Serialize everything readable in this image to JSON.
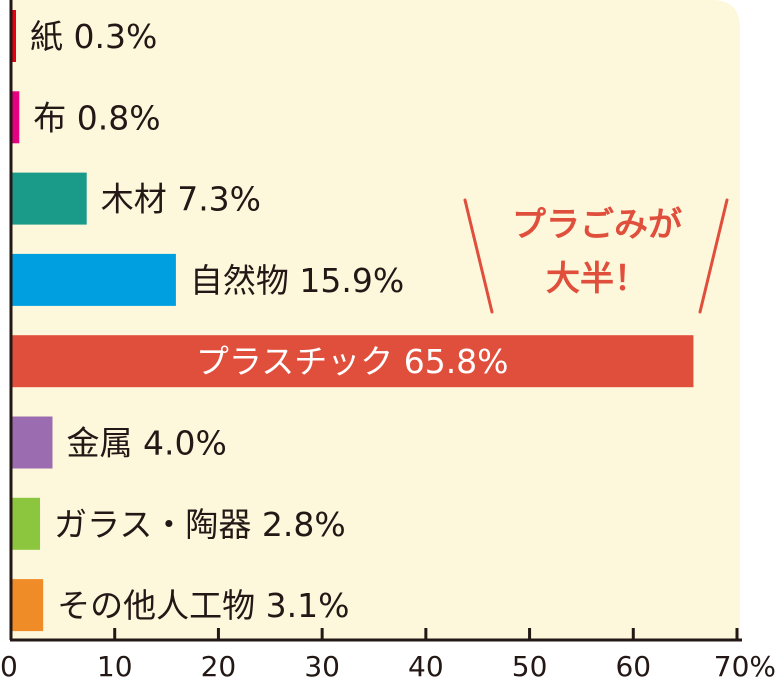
{
  "chart_data": {
    "type": "bar",
    "orientation": "horizontal",
    "categories": [
      "紙",
      "布",
      "木材",
      "自然物",
      "プラスチック",
      "金属",
      "ガラス・陶器",
      "その他人工物"
    ],
    "values": [
      0.3,
      0.8,
      7.3,
      15.9,
      65.8,
      4.0,
      2.8,
      3.1
    ],
    "value_suffix": "%",
    "colors": [
      "#e50012",
      "#e5007f",
      "#1a9b8a",
      "#00a0e0",
      "#e04e3c",
      "#9b6cb0",
      "#8cc63f",
      "#f08c28"
    ],
    "xlim": [
      0,
      70
    ],
    "x_ticks": [
      0,
      10,
      20,
      30,
      40,
      50,
      60,
      70
    ],
    "x_tick_labels": [
      "0",
      "10",
      "20",
      "30",
      "40",
      "50",
      "60",
      "70%"
    ],
    "grid": false,
    "background_color": "#fdf7dc",
    "axis_color": "#231815",
    "callout": {
      "lines": [
        "プラごみが",
        "大半！"
      ],
      "color": "#e04e3c"
    }
  }
}
